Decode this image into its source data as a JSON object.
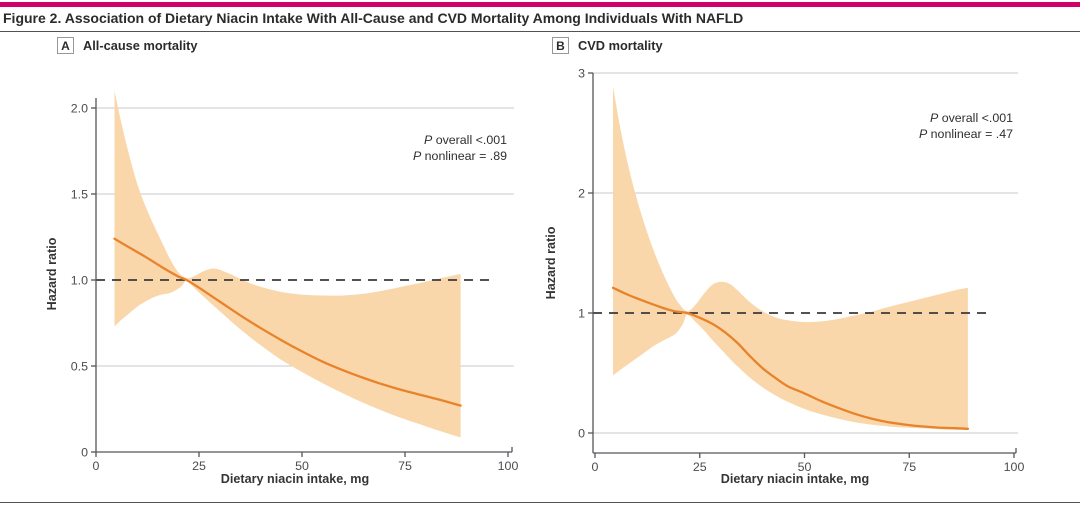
{
  "figure": {
    "title": "Figure 2. Association of Dietary Niacin Intake With All-Cause and CVD Mortality Among Individuals With NAFLD"
  },
  "colors": {
    "accent_bar": "#D4006A",
    "band": "#F9D7AB",
    "curve": "#E8832B",
    "grid": "#C9CACC",
    "axis": "#55565A",
    "reference_dash": "#3A3A3C",
    "text_dark": "#2B2B2D",
    "text_gray": "#4B4C4E"
  },
  "panels": [
    {
      "tag": "A",
      "label": "All-cause mortality",
      "p_overall_p": "P",
      "p_overall_text": " overall <.001",
      "p_nonlinear_p": "P",
      "p_nonlinear_text": " nonlinear = .89"
    },
    {
      "tag": "B",
      "label": "CVD mortality",
      "p_overall_p": "P",
      "p_overall_text": " overall <.001",
      "p_nonlinear_p": "P",
      "p_nonlinear_text": " nonlinear = .47"
    }
  ],
  "chart_data": [
    {
      "type": "line",
      "title": "All-cause mortality",
      "xlabel": "Dietary niacin intake, mg",
      "ylabel": "Hazard ratio",
      "xlim": [
        0,
        100
      ],
      "ylim": [
        0,
        2.1
      ],
      "xticks": [
        0,
        25,
        50,
        75,
        100
      ],
      "ytick_values": [
        0,
        0.5,
        1.0,
        1.5,
        2.0
      ],
      "ytick_labels": [
        "0",
        "0.5",
        "1.0",
        "1.5",
        "2.0"
      ],
      "gridlines": [
        0.5,
        1.5,
        2.0
      ],
      "reference_line": 1.0,
      "legend_position": "none",
      "annotations": [
        "P overall <.001",
        "P nonlinear = .89"
      ],
      "series": [
        {
          "name": "hazard-ratio",
          "values": [
            [
              4.5,
              1.24
            ],
            [
              8,
              1.19
            ],
            [
              12,
              1.135
            ],
            [
              16,
              1.075
            ],
            [
              20,
              1.02
            ],
            [
              22,
              1.0
            ],
            [
              25,
              0.955
            ],
            [
              30,
              0.875
            ],
            [
              35,
              0.795
            ],
            [
              40,
              0.72
            ],
            [
              45,
              0.65
            ],
            [
              50,
              0.585
            ],
            [
              55,
              0.525
            ],
            [
              60,
              0.475
            ],
            [
              65,
              0.43
            ],
            [
              70,
              0.39
            ],
            [
              75,
              0.355
            ],
            [
              80,
              0.325
            ],
            [
              84,
              0.3
            ],
            [
              88.5,
              0.27
            ]
          ]
        },
        {
          "name": "ci-upper",
          "values": [
            [
              4.5,
              2.1
            ],
            [
              6,
              1.93
            ],
            [
              8,
              1.73
            ],
            [
              10,
              1.56
            ],
            [
              12,
              1.43
            ],
            [
              14,
              1.32
            ],
            [
              16,
              1.22
            ],
            [
              18,
              1.12
            ],
            [
              20,
              1.045
            ],
            [
              22,
              1.01
            ],
            [
              24,
              1.025
            ],
            [
              26,
              1.05
            ],
            [
              28,
              1.065
            ],
            [
              30,
              1.06
            ],
            [
              33,
              1.03
            ],
            [
              36,
              0.995
            ],
            [
              40,
              0.96
            ],
            [
              45,
              0.93
            ],
            [
              50,
              0.915
            ],
            [
              55,
              0.91
            ],
            [
              60,
              0.91
            ],
            [
              65,
              0.92
            ],
            [
              70,
              0.94
            ],
            [
              75,
              0.965
            ],
            [
              80,
              0.99
            ],
            [
              84,
              1.012
            ],
            [
              88.5,
              1.035
            ]
          ]
        },
        {
          "name": "ci-lower",
          "values": [
            [
              4.5,
              0.73
            ],
            [
              6,
              0.765
            ],
            [
              8,
              0.805
            ],
            [
              10,
              0.845
            ],
            [
              12,
              0.875
            ],
            [
              14,
              0.9
            ],
            [
              16,
              0.915
            ],
            [
              18,
              0.925
            ],
            [
              20,
              0.95
            ],
            [
              21,
              0.97
            ],
            [
              22,
              0.995
            ],
            [
              24,
              0.95
            ],
            [
              26,
              0.905
            ],
            [
              28,
              0.862
            ],
            [
              30,
              0.82
            ],
            [
              33,
              0.755
            ],
            [
              36,
              0.695
            ],
            [
              40,
              0.62
            ],
            [
              45,
              0.535
            ],
            [
              50,
              0.465
            ],
            [
              55,
              0.4
            ],
            [
              60,
              0.34
            ],
            [
              65,
              0.285
            ],
            [
              70,
              0.235
            ],
            [
              75,
              0.19
            ],
            [
              80,
              0.15
            ],
            [
              84,
              0.118
            ],
            [
              88.5,
              0.085
            ]
          ]
        }
      ]
    },
    {
      "type": "line",
      "title": "CVD mortality",
      "xlabel": "Dietary niacin intake, mg",
      "ylabel": "Hazard ratio",
      "xlim": [
        0,
        100
      ],
      "ylim": [
        -0.17,
        3
      ],
      "xticks": [
        0,
        25,
        50,
        75,
        100
      ],
      "ytick_values": [
        0,
        1,
        2,
        3
      ],
      "ytick_labels": [
        "0",
        "1",
        "2",
        "3"
      ],
      "gridlines": [
        0,
        2,
        3
      ],
      "reference_line": 1.0,
      "legend_position": "none",
      "annotations": [
        "P overall <.001",
        "P nonlinear = .47"
      ],
      "series": [
        {
          "name": "hazard-ratio",
          "values": [
            [
              4.3,
              1.21
            ],
            [
              8,
              1.15
            ],
            [
              12,
              1.095
            ],
            [
              16,
              1.045
            ],
            [
              19,
              1.015
            ],
            [
              22,
              1.0
            ],
            [
              25,
              0.96
            ],
            [
              28,
              0.91
            ],
            [
              31,
              0.84
            ],
            [
              34,
              0.75
            ],
            [
              37,
              0.64
            ],
            [
              40,
              0.54
            ],
            [
              43,
              0.46
            ],
            [
              46,
              0.39
            ],
            [
              50,
              0.33
            ],
            [
              54,
              0.265
            ],
            [
              58,
              0.21
            ],
            [
              62,
              0.16
            ],
            [
              66,
              0.12
            ],
            [
              70,
              0.09
            ],
            [
              74,
              0.07
            ],
            [
              78,
              0.055
            ],
            [
              82,
              0.045
            ],
            [
              86,
              0.04
            ],
            [
              89,
              0.035
            ]
          ]
        },
        {
          "name": "ci-upper",
          "values": [
            [
              4.3,
              2.89
            ],
            [
              6,
              2.55
            ],
            [
              8,
              2.22
            ],
            [
              10,
              1.95
            ],
            [
              12,
              1.72
            ],
            [
              14,
              1.52
            ],
            [
              16,
              1.35
            ],
            [
              18,
              1.2
            ],
            [
              20,
              1.08
            ],
            [
              22,
              1.015
            ],
            [
              24,
              1.07
            ],
            [
              26,
              1.16
            ],
            [
              28,
              1.235
            ],
            [
              30,
              1.26
            ],
            [
              32,
              1.245
            ],
            [
              34,
              1.19
            ],
            [
              37,
              1.09
            ],
            [
              40,
              1.015
            ],
            [
              43,
              0.965
            ],
            [
              46,
              0.94
            ],
            [
              50,
              0.925
            ],
            [
              54,
              0.93
            ],
            [
              58,
              0.95
            ],
            [
              62,
              0.98
            ],
            [
              66,
              1.01
            ],
            [
              70,
              1.05
            ],
            [
              74,
              1.085
            ],
            [
              78,
              1.12
            ],
            [
              82,
              1.155
            ],
            [
              86,
              1.19
            ],
            [
              89,
              1.21
            ]
          ]
        },
        {
          "name": "ci-lower",
          "values": [
            [
              4.3,
              0.48
            ],
            [
              6,
              0.525
            ],
            [
              8,
              0.575
            ],
            [
              10,
              0.625
            ],
            [
              12,
              0.675
            ],
            [
              14,
              0.725
            ],
            [
              16,
              0.765
            ],
            [
              18,
              0.8
            ],
            [
              19.5,
              0.835
            ],
            [
              21,
              0.91
            ],
            [
              22,
              0.985
            ],
            [
              24,
              0.925
            ],
            [
              26,
              0.855
            ],
            [
              28,
              0.775
            ],
            [
              30,
              0.7
            ],
            [
              32,
              0.625
            ],
            [
              34,
              0.555
            ],
            [
              37,
              0.46
            ],
            [
              40,
              0.38
            ],
            [
              43,
              0.315
            ],
            [
              46,
              0.26
            ],
            [
              50,
              0.2
            ],
            [
              54,
              0.155
            ],
            [
              58,
              0.12
            ],
            [
              62,
              0.09
            ],
            [
              66,
              0.07
            ],
            [
              70,
              0.055
            ],
            [
              74,
              0.045
            ],
            [
              78,
              0.038
            ],
            [
              82,
              0.032
            ],
            [
              86,
              0.027
            ],
            [
              89,
              0.025
            ]
          ]
        }
      ]
    }
  ]
}
